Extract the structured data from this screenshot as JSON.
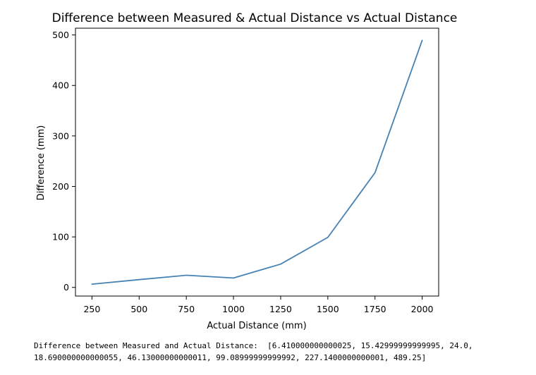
{
  "chart_data": {
    "type": "line",
    "title": "Difference between Measured & Actual Distance vs Actual Distance",
    "xlabel": "Actual Distance (mm)",
    "ylabel": "Difference (mm)",
    "x": [
      250,
      500,
      750,
      1000,
      1250,
      1500,
      1750,
      2000
    ],
    "series": [
      {
        "name": "Difference",
        "values": [
          6.41,
          15.43,
          24.0,
          18.69,
          46.13,
          99.09,
          227.14,
          489.25
        ],
        "color": "#4682b4"
      }
    ],
    "xlim": [
      162.5,
      2087.5
    ],
    "ylim": [
      -17.14,
      513.39
    ],
    "xticks": [
      250,
      500,
      750,
      1000,
      1250,
      1500,
      1750,
      2000
    ],
    "yticks": [
      0,
      100,
      200,
      300,
      400,
      500
    ],
    "grid": false,
    "legend": "none"
  },
  "output": {
    "line1": "Difference between Measured and Actual Distance:  [6.410000000000025, 15.42999999999995, 24.0,",
    "line2": "18.690000000000055, 46.13000000000011, 99.08999999999992, 227.1400000000001, 489.25]"
  }
}
